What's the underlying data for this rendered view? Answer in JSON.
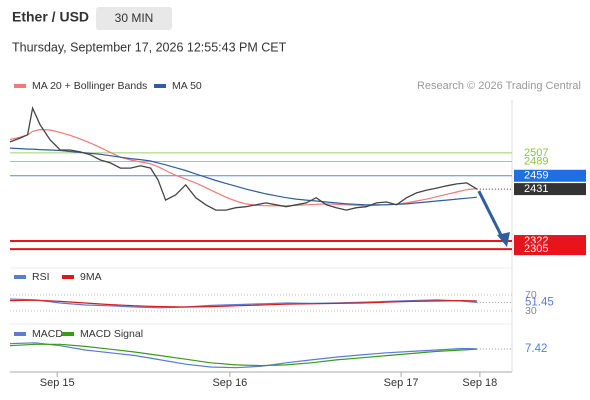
{
  "header": {
    "symbol": "Ether / USD",
    "interval": "30 MIN",
    "datetime": "Thursday, September 17, 2026 12:55:43 PM CET",
    "credit": "Research © 2026 Trading Central"
  },
  "chart_data": [
    {
      "type": "line",
      "xlim": [
        0,
        100
      ],
      "ylim": [
        2278,
        2618
      ],
      "x": [
        0,
        2,
        3.5,
        4.5,
        6,
        8,
        10,
        12,
        14,
        16,
        18,
        20,
        22,
        24,
        26,
        28,
        29.5,
        31,
        33,
        35,
        37,
        39,
        41,
        43,
        45,
        47,
        49,
        51,
        53,
        55,
        57,
        59,
        61,
        63,
        65,
        67,
        69,
        71,
        73,
        75,
        77,
        79,
        81,
        83,
        85,
        87,
        89,
        91,
        93
      ],
      "price_color": "#444444",
      "price_values": [
        2530,
        2538,
        2545,
        2601,
        2566,
        2534,
        2513,
        2513,
        2509,
        2503,
        2492,
        2486,
        2475,
        2475,
        2480,
        2475,
        2450,
        2408,
        2419,
        2440,
        2413,
        2398,
        2387,
        2387,
        2392,
        2394,
        2398,
        2402,
        2398,
        2394,
        2398,
        2402,
        2413,
        2398,
        2392,
        2387,
        2392,
        2394,
        2402,
        2404,
        2398,
        2413,
        2423,
        2429,
        2433,
        2438,
        2442,
        2444,
        2431
      ],
      "last_box_color": "#333333",
      "series": [
        {
          "name": "MA 20 + Bollinger Bands",
          "color": "#f07a7a",
          "values": [
            2535,
            2540,
            2545,
            2552,
            2556,
            2555,
            2550,
            2544,
            2536,
            2528,
            2518,
            2508,
            2498,
            2492,
            2488,
            2484,
            2478,
            2470,
            2460,
            2452,
            2444,
            2434,
            2424,
            2414,
            2406,
            2400,
            2397,
            2396,
            2396,
            2396,
            2397,
            2398,
            2399,
            2400,
            2399,
            2398,
            2397,
            2396,
            2397,
            2398,
            2399,
            2402,
            2406,
            2410,
            2415,
            2420,
            2425,
            2430,
            2432
          ]
        },
        {
          "name": "MA 50",
          "color": "#2f5d9e",
          "values": [
            2517,
            2516,
            2515,
            2515,
            2514,
            2513,
            2512,
            2510,
            2508,
            2506,
            2504,
            2501,
            2498,
            2495,
            2493,
            2490,
            2486,
            2482,
            2476,
            2470,
            2463,
            2456,
            2449,
            2443,
            2437,
            2431,
            2426,
            2421,
            2417,
            2413,
            2410,
            2408,
            2406,
            2404,
            2402,
            2400,
            2399,
            2398,
            2398,
            2398,
            2399,
            2400,
            2402,
            2404,
            2406,
            2408,
            2410,
            2412,
            2414
          ]
        }
      ],
      "levels": [
        {
          "value": 2507,
          "color": "#8bc34a",
          "style": "text"
        },
        {
          "value": 2489,
          "color": "#8bc34a",
          "style": "text"
        },
        {
          "value": 2459,
          "color": "#1e6fe0",
          "style": "box"
        },
        {
          "value": 2322,
          "color": "#e8141b",
          "style": "box"
        },
        {
          "value": 2305,
          "color": "#e8141b",
          "style": "box"
        }
      ]
    },
    {
      "type": "line",
      "xlim": [
        0,
        100
      ],
      "ylim": [
        12.5,
        87.5
      ],
      "yticks": [
        70,
        30
      ],
      "x": [
        0,
        5,
        10,
        15,
        20,
        25,
        30,
        35,
        40,
        45,
        50,
        55,
        60,
        65,
        70,
        75,
        80,
        85,
        90,
        93
      ],
      "series": [
        {
          "name": "RSI",
          "color": "#5b7bd5",
          "values": [
            60,
            58,
            50,
            45,
            43,
            40,
            38,
            40,
            44,
            46,
            48,
            50,
            49,
            50,
            52,
            54,
            56,
            58,
            55,
            51.45
          ]
        },
        {
          "name": "9MA",
          "color": "#d81b1b",
          "values": [
            56,
            57,
            54,
            50,
            46,
            43,
            41,
            40,
            41,
            43,
            45,
            47,
            48,
            49,
            50,
            52,
            54,
            55,
            56,
            55
          ]
        }
      ]
    },
    {
      "type": "line",
      "xlim": [
        0,
        100
      ],
      "ylim": [
        -25,
        20
      ],
      "x": [
        0,
        5,
        10,
        15,
        20,
        25,
        30,
        35,
        40,
        45,
        50,
        55,
        60,
        65,
        70,
        75,
        80,
        85,
        90,
        93
      ],
      "xticks": [
        {
          "value": 9.4,
          "label": "Sep 15"
        },
        {
          "value": 43.8,
          "label": "Sep 16"
        },
        {
          "value": 77.9,
          "label": "Sep 17"
        },
        {
          "value": 93.6,
          "label": "Sep 18"
        }
      ],
      "series": [
        {
          "name": "MACD",
          "color": "#5b7bd5",
          "values": [
            15,
            16,
            12,
            6,
            2,
            -2,
            -8,
            -14,
            -18,
            -19,
            -17,
            -12,
            -8,
            -4,
            -1,
            2,
            4,
            6,
            8,
            7.42
          ]
        },
        {
          "name": "MACD Signal",
          "color": "#3a9a1a",
          "values": [
            12,
            14,
            14,
            11,
            7,
            3,
            -2,
            -7,
            -12,
            -15,
            -16,
            -15,
            -12,
            -8,
            -5,
            -2,
            1,
            4,
            6,
            7
          ]
        }
      ]
    }
  ]
}
